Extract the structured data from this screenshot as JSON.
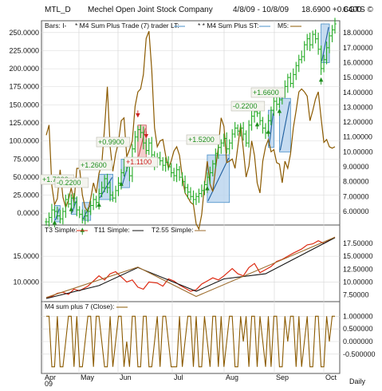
{
  "header": {
    "symbol": "MTL_D",
    "company": "Mechel Open Joint Stock Company",
    "range": "4/8/09 - 10/8/09",
    "last": "18.6900 +0.6400",
    "brand": "CGTS ©"
  },
  "footer": {
    "period": "Daily",
    "year": "09"
  },
  "colors": {
    "price_bars": "#22aa22",
    "m4_line": "#8B5A00",
    "trade_long_fill": "#bcd6ee",
    "trade_long_stroke": "#4a90c8",
    "trade_short_fill": "#f2c4c4",
    "trade_short_stroke": "#c84a4a",
    "gain_label": "#1f8f1f",
    "loss_label": "#cc2222",
    "t3_line": "#dd2a12",
    "t11_line": "#111111",
    "t255_line": "#9c6b2c",
    "grid": "#d8d8d8"
  },
  "icons": {
    "up_arrow": "green-up-arrow",
    "down_arrow": "red-down-arrow"
  },
  "chart_data": [
    {
      "type": "ohlc",
      "panel": "price",
      "legend": [
        "Bars: I-",
        "* M4 Sum Plus Trade (7) trader LT:",
        "* * M4 Sum Plus ST:",
        "M5:"
      ],
      "x_labels": [
        "Apr",
        "May",
        "Jun",
        "Jul",
        "Aug",
        "Sep",
        "Oct"
      ],
      "y_left": {
        "ticks": [
          "250.0000",
          "225.0000",
          "200.0000",
          "175.0000",
          "150.0000",
          "125.0000",
          "100.0000",
          "75.0000",
          "50.0000",
          "25.0000",
          "0.0000"
        ],
        "ylim": [
          -12,
          262
        ]
      },
      "y_right": {
        "ticks": [
          "18.00000",
          "17.00000",
          "16.00000",
          "15.00000",
          "14.00000",
          "13.00000",
          "12.00000",
          "11.00000",
          "10.00000",
          "9.00000",
          "8.00000",
          "7.00000",
          "6.00000"
        ],
        "ylim": [
          5.3,
          18.6
        ]
      },
      "price_close": [
        5.3,
        5.6,
        6.1,
        6.0,
        5.7,
        5.5,
        6.0,
        6.8,
        6.5,
        6.9,
        6.6,
        6.1,
        5.8,
        5.5,
        5.7,
        6.0,
        6.4,
        6.8,
        6.6,
        7.2,
        7.6,
        8.2,
        7.6,
        7.1,
        6.9,
        7.4,
        7.9,
        8.6,
        9.2,
        9.0,
        8.4,
        10.2,
        11.0,
        11.5,
        11.3,
        10.6,
        10.1,
        10.6,
        9.8,
        9.2,
        9.6,
        9.4,
        9.1,
        9.3,
        9.0,
        8.6,
        8.4,
        8.8,
        8.3,
        8.0,
        7.6,
        7.3,
        7.0,
        6.8,
        7.0,
        7.2,
        7.4,
        7.8,
        8.3,
        8.6,
        9.2,
        9.9,
        10.3,
        10.6,
        10.9,
        10.2,
        10.6,
        11.2,
        11.6,
        11.4,
        11.6,
        11.2,
        10.6,
        11.8,
        12.4,
        12.7,
        12.6,
        12.1,
        11.6,
        11.3,
        12.1,
        12.8,
        13.4,
        13.2,
        13.5,
        14.0,
        14.4,
        15.0,
        14.6,
        15.2,
        15.8,
        16.2,
        16.4,
        17.2,
        17.6,
        17.2,
        17.9,
        17.6,
        16.9,
        15.6,
        16.2,
        17.0,
        17.8,
        18.2,
        18.6
      ],
      "m4_sum_plus_7": [
        108,
        122,
        38,
        12,
        20,
        60,
        22,
        8,
        18,
        35,
        15,
        62,
        62,
        25,
        8,
        2,
        20,
        42,
        28,
        55,
        68,
        118,
        175,
        92,
        58,
        82,
        98,
        128,
        132,
        78,
        88,
        100,
        148,
        168,
        172,
        192,
        242,
        252,
        198,
        118,
        92,
        100,
        102,
        80,
        62,
        72,
        86,
        92,
        80,
        50,
        28,
        22,
        15,
        12,
        -15,
        -22,
        -2,
        38,
        72,
        40,
        30,
        62,
        92,
        132,
        120,
        70,
        72,
        75,
        62,
        92,
        122,
        88,
        50,
        65,
        100,
        80,
        42,
        28,
        72,
        92,
        102,
        85,
        88,
        70,
        68,
        42,
        72,
        62,
        82,
        118,
        142,
        168,
        172,
        168,
        162,
        128,
        142,
        158,
        168,
        132,
        98,
        102,
        92,
        90,
        92
      ],
      "trades": [
        {
          "direction": "long",
          "label": "+1.7000"
        },
        {
          "direction": "long",
          "label": "-0.2200"
        },
        {
          "direction": "long",
          "label": "+1.2600"
        },
        {
          "direction": "long",
          "label": "+0.9900"
        },
        {
          "direction": "short",
          "label": "+1.1100"
        },
        {
          "direction": "long",
          "label": "+1.5200"
        },
        {
          "direction": "long",
          "label": "-0.2200"
        },
        {
          "direction": "long",
          "label": "+1.6600"
        }
      ]
    },
    {
      "type": "line",
      "panel": "t_lines",
      "legend": [
        "T3 Simple:",
        "T11 Simple:",
        "T2.55 Simple:"
      ],
      "y_left": {
        "ticks": [
          "15.0000",
          "10.0000"
        ],
        "ylim": [
          6.5,
          19.2
        ]
      },
      "y_right": {
        "ticks": [
          "17.50000",
          "15.00000",
          "12.50000",
          "10.00000",
          "7.50000"
        ],
        "ylim": [
          6.5,
          19.2
        ]
      },
      "series": [
        {
          "name": "T3 Simple",
          "values": [
            7.0,
            7.2,
            7.8,
            8.0,
            7.6,
            8.6,
            8.3,
            9.2,
            10.2,
            11.2,
            10.4,
            11.6,
            12.0,
            11.0,
            10.0,
            10.4,
            9.0,
            8.6,
            10.0,
            9.8,
            9.2,
            10.6,
            10.2,
            9.4,
            8.8,
            8.2,
            8.5,
            9.6,
            10.2,
            10.8,
            10.4,
            11.2,
            12.6,
            11.6,
            11.2,
            12.8,
            13.6,
            11.8,
            12.4,
            13.0,
            14.0,
            14.4,
            15.0,
            15.6,
            16.4,
            17.2,
            17.4,
            18.0,
            17.5,
            18.1,
            18.7
          ]
        },
        {
          "name": "T11 Simple",
          "x": [
            0,
            18,
            32,
            52,
            62,
            76,
            100
          ],
          "values": [
            6.8,
            9.3,
            12.8,
            8.2,
            10.6,
            11.6,
            18.6
          ]
        },
        {
          "name": "T2.55 Simple",
          "x": [
            0,
            32,
            52,
            100
          ],
          "values": [
            7.0,
            12.9,
            7.2,
            18.7
          ]
        }
      ]
    },
    {
      "type": "line",
      "panel": "oscillator",
      "legend": [
        "M4 sum plus 7 (Close):"
      ],
      "y_right": {
        "ticks": [
          "1.000000",
          "0.500000",
          "0.000000",
          "-0.500000"
        ],
        "ylim": [
          -1.2,
          1.2
        ]
      },
      "values": [
        1,
        1,
        -1,
        -1,
        1,
        -1,
        -1,
        0,
        1,
        1,
        -1,
        1,
        -1,
        -1,
        0,
        1,
        1,
        -1,
        1,
        1,
        0,
        -1,
        -1,
        1,
        -1,
        0,
        1,
        1,
        -1,
        0,
        -1,
        1,
        1,
        -1,
        -1,
        1,
        1,
        -1,
        -1,
        0,
        1,
        -1,
        1,
        1,
        0,
        -1,
        -1,
        -1,
        1,
        -1,
        0,
        1,
        1,
        -1,
        1,
        -1,
        -1,
        1,
        0,
        -1,
        1,
        1,
        -1,
        1,
        -1,
        0,
        1,
        1,
        -1,
        -1,
        1,
        0,
        1,
        -1,
        1,
        1,
        -1,
        1,
        0,
        -1,
        1,
        -1,
        1,
        1,
        -1,
        -1,
        1,
        0,
        1,
        1,
        -1,
        1,
        -1,
        0,
        1,
        -1,
        -1,
        1,
        1,
        -1,
        -1,
        1,
        0,
        1,
        1
      ]
    }
  ]
}
